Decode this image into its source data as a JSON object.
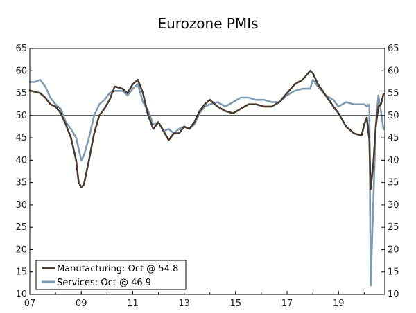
{
  "chart_data": {
    "type": "line",
    "title": "Eurozone PMIs",
    "xlabel": "",
    "ylabel": "",
    "ylim": [
      10,
      65
    ],
    "xlim": [
      2007.0,
      2020.8
    ],
    "y_ticks": [
      10,
      15,
      20,
      25,
      30,
      35,
      40,
      45,
      50,
      55,
      60,
      65
    ],
    "x_ticks": [
      {
        "label": "07",
        "value": 2007
      },
      {
        "label": "09",
        "value": 2009
      },
      {
        "label": "11",
        "value": 2011
      },
      {
        "label": "13",
        "value": 2013
      },
      {
        "label": "15",
        "value": 2015
      },
      {
        "label": "17",
        "value": 2017
      },
      {
        "label": "19",
        "value": 2019
      }
    ],
    "reference_line": 50,
    "legend_position": "bottom-left",
    "series": [
      {
        "name": "Manufacturing: Oct @ 54.8",
        "color": "#4a3b30",
        "x": [
          2007.0,
          2007.2,
          2007.4,
          2007.6,
          2007.8,
          2008.0,
          2008.2,
          2008.4,
          2008.6,
          2008.8,
          2008.9,
          2009.0,
          2009.1,
          2009.3,
          2009.5,
          2009.7,
          2009.9,
          2010.1,
          2010.3,
          2010.6,
          2010.8,
          2011.0,
          2011.2,
          2011.4,
          2011.6,
          2011.8,
          2012.0,
          2012.2,
          2012.4,
          2012.6,
          2012.8,
          2013.0,
          2013.2,
          2013.4,
          2013.6,
          2013.8,
          2014.0,
          2014.3,
          2014.6,
          2014.9,
          2015.2,
          2015.5,
          2015.8,
          2016.1,
          2016.4,
          2016.7,
          2017.0,
          2017.3,
          2017.6,
          2017.9,
          2018.0,
          2018.2,
          2018.5,
          2018.8,
          2019.0,
          2019.3,
          2019.6,
          2019.9,
          2020.0,
          2020.1,
          2020.2,
          2020.25,
          2020.35,
          2020.45,
          2020.55,
          2020.65,
          2020.75
        ],
        "values": [
          55.6,
          55.3,
          55.0,
          54.0,
          52.5,
          52.0,
          50.5,
          48.0,
          45.0,
          40.0,
          35.0,
          34.0,
          34.5,
          40.0,
          46.0,
          50.0,
          51.5,
          53.5,
          56.5,
          56.0,
          55.0,
          57.0,
          58.0,
          55.0,
          50.0,
          47.0,
          48.5,
          46.5,
          44.5,
          46.0,
          46.0,
          47.5,
          47.0,
          48.5,
          51.0,
          52.5,
          53.5,
          52.0,
          51.0,
          50.5,
          51.5,
          52.5,
          52.5,
          52.0,
          52.0,
          53.0,
          55.0,
          57.0,
          58.0,
          60.0,
          59.5,
          57.0,
          54.5,
          52.0,
          50.5,
          47.5,
          46.0,
          45.5,
          48.0,
          49.5,
          44.5,
          33.5,
          39.0,
          47.5,
          52.0,
          52.5,
          54.8
        ]
      },
      {
        "name": "Services: Oct @ 46.9",
        "color": "#7f9bb3",
        "x": [
          2007.0,
          2007.2,
          2007.4,
          2007.6,
          2007.8,
          2008.0,
          2008.2,
          2008.4,
          2008.6,
          2008.8,
          2009.0,
          2009.1,
          2009.3,
          2009.5,
          2009.7,
          2009.9,
          2010.1,
          2010.3,
          2010.6,
          2010.8,
          2011.0,
          2011.2,
          2011.4,
          2011.6,
          2011.8,
          2012.0,
          2012.2,
          2012.4,
          2012.6,
          2012.8,
          2013.0,
          2013.2,
          2013.4,
          2013.6,
          2013.8,
          2014.0,
          2014.3,
          2014.6,
          2014.9,
          2015.2,
          2015.5,
          2015.8,
          2016.1,
          2016.4,
          2016.7,
          2017.0,
          2017.3,
          2017.6,
          2017.9,
          2018.0,
          2018.2,
          2018.5,
          2018.8,
          2019.0,
          2019.3,
          2019.6,
          2019.9,
          2020.0,
          2020.1,
          2020.2,
          2020.25,
          2020.35,
          2020.45,
          2020.55,
          2020.65,
          2020.75
        ],
        "values": [
          57.5,
          57.5,
          58.0,
          56.5,
          54.0,
          52.5,
          51.5,
          48.5,
          47.0,
          45.0,
          40.0,
          41.0,
          45.0,
          50.0,
          52.5,
          53.5,
          55.0,
          55.5,
          55.5,
          54.5,
          56.0,
          57.0,
          53.0,
          51.0,
          48.0,
          48.5,
          46.5,
          47.0,
          46.0,
          47.0,
          47.5,
          47.0,
          48.0,
          50.5,
          52.0,
          52.5,
          53.0,
          52.0,
          53.0,
          54.0,
          54.0,
          53.5,
          53.5,
          53.0,
          53.0,
          54.5,
          55.5,
          56.0,
          56.0,
          58.0,
          56.5,
          54.5,
          53.5,
          52.0,
          53.0,
          52.5,
          52.5,
          52.5,
          52.0,
          52.5,
          12.0,
          30.0,
          48.0,
          54.5,
          51.0,
          46.9
        ]
      }
    ]
  }
}
